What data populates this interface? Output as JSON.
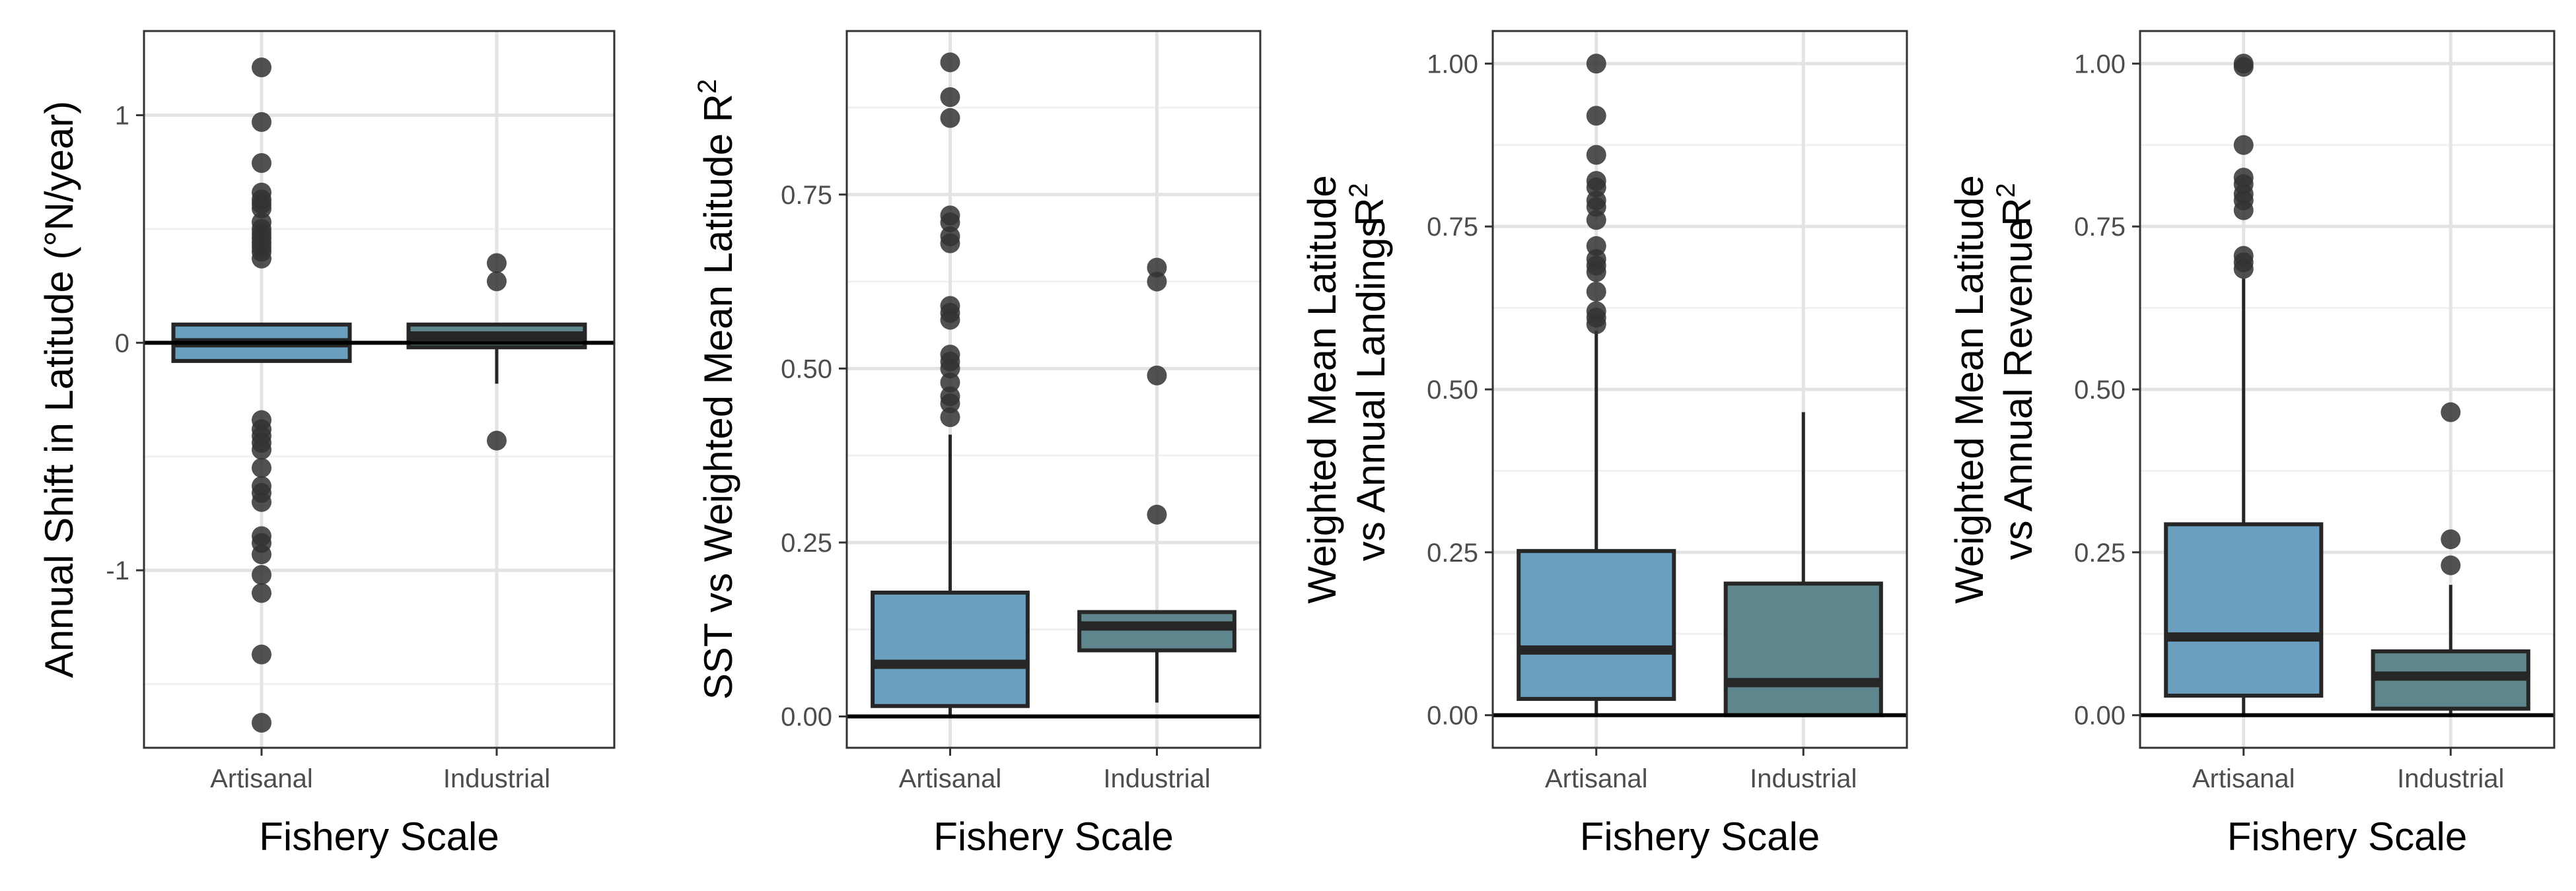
{
  "colors": {
    "artisanal": "#6b9fbf",
    "industrial": "#5f868c",
    "outline": "#262626",
    "point": "#333333",
    "grid_major": "#e3e3e3",
    "grid_minor": "#f1f1f1",
    "zero_line": "#000000"
  },
  "chart_data": [
    {
      "type": "box",
      "xlabel": "Fishery Scale",
      "ylabel_lines": [
        "Annual Shift in Latitude (°N/year)"
      ],
      "ylabel_sup": "",
      "categories": [
        "Artisanal",
        "Industrial"
      ],
      "yticks": [
        -1,
        0,
        1
      ],
      "ytick_labels": [
        "-1",
        "0",
        "1"
      ],
      "ylim": [
        -1.78,
        1.37
      ],
      "zero_line": 0,
      "grid": true,
      "boxes": [
        {
          "category": "Artisanal",
          "q1": -0.08,
          "median": 0.0,
          "q3": 0.08,
          "whisker_low": -0.08,
          "whisker_high": 0.08,
          "outliers": [
            1.21,
            0.97,
            0.79,
            0.66,
            0.63,
            0.61,
            0.59,
            0.53,
            0.5,
            0.48,
            0.46,
            0.44,
            0.42,
            0.4,
            0.37,
            -0.34,
            -0.38,
            -0.41,
            -0.44,
            -0.47,
            -0.55,
            -0.63,
            -0.66,
            -0.7,
            -0.85,
            -0.88,
            -0.93,
            -1.02,
            -1.1,
            -1.37,
            -1.67
          ]
        },
        {
          "category": "Industrial",
          "q1": -0.02,
          "median": 0.03,
          "q3": 0.08,
          "whisker_low": -0.18,
          "whisker_high": 0.08,
          "outliers": [
            0.35,
            0.27,
            -0.43
          ]
        }
      ]
    },
    {
      "type": "box",
      "xlabel": "Fishery Scale",
      "ylabel_lines": [
        "SST vs Weighted Mean Latitude R"
      ],
      "ylabel_sup": "2",
      "categories": [
        "Artisanal",
        "Industrial"
      ],
      "yticks": [
        0,
        0.25,
        0.5,
        0.75
      ],
      "ytick_labels": [
        "0.00",
        "0.25",
        "0.50",
        "0.75"
      ],
      "ylim": [
        -0.045,
        0.985
      ],
      "zero_line": 0,
      "grid": true,
      "boxes": [
        {
          "category": "Artisanal",
          "q1": 0.015,
          "median": 0.075,
          "q3": 0.178,
          "whisker_low": 0.0,
          "whisker_high": 0.405,
          "outliers": [
            0.94,
            0.89,
            0.86,
            0.72,
            0.71,
            0.69,
            0.68,
            0.59,
            0.58,
            0.57,
            0.52,
            0.51,
            0.5,
            0.48,
            0.46,
            0.45,
            0.43
          ]
        },
        {
          "category": "Industrial",
          "q1": 0.095,
          "median": 0.13,
          "q3": 0.15,
          "whisker_low": 0.02,
          "whisker_high": 0.15,
          "outliers": [
            0.645,
            0.625,
            0.49,
            0.29
          ]
        }
      ]
    },
    {
      "type": "box",
      "xlabel": "Fishery Scale",
      "ylabel_lines": [
        "Weighted Mean Latitude",
        "vs Annual Landings"
      ],
      "ylabel_sup": "R2",
      "categories": [
        "Artisanal",
        "Industrial"
      ],
      "yticks": [
        0,
        0.25,
        0.5,
        0.75,
        1.0
      ],
      "ytick_labels": [
        "0.00",
        "0.25",
        "0.50",
        "0.75",
        "1.00"
      ],
      "ylim": [
        -0.05,
        1.05
      ],
      "zero_line": 0,
      "grid": true,
      "boxes": [
        {
          "category": "Artisanal",
          "q1": 0.025,
          "median": 0.1,
          "q3": 0.252,
          "whisker_low": 0.0,
          "whisker_high": 0.59,
          "outliers": [
            1.0,
            0.92,
            0.86,
            0.82,
            0.81,
            0.79,
            0.78,
            0.76,
            0.72,
            0.7,
            0.69,
            0.68,
            0.65,
            0.62,
            0.61,
            0.6
          ]
        },
        {
          "category": "Industrial",
          "q1": 0.0,
          "median": 0.05,
          "q3": 0.202,
          "whisker_low": 0.0,
          "whisker_high": 0.465,
          "outliers": []
        }
      ]
    },
    {
      "type": "box",
      "xlabel": "Fishery Scale",
      "ylabel_lines": [
        "Weighted Mean Latitude",
        "vs Annual Revenue"
      ],
      "ylabel_sup": "R2",
      "categories": [
        "Artisanal",
        "Industrial"
      ],
      "yticks": [
        0,
        0.25,
        0.5,
        0.75,
        1.0
      ],
      "ytick_labels": [
        "0.00",
        "0.25",
        "0.50",
        "0.75",
        "1.00"
      ],
      "ylim": [
        -0.05,
        1.05
      ],
      "zero_line": 0,
      "grid": true,
      "boxes": [
        {
          "category": "Artisanal",
          "q1": 0.03,
          "median": 0.12,
          "q3": 0.293,
          "whisker_low": 0.0,
          "whisker_high": 0.67,
          "outliers": [
            1.0,
            0.995,
            0.875,
            0.825,
            0.815,
            0.8,
            0.79,
            0.775,
            0.705,
            0.695,
            0.685
          ]
        },
        {
          "category": "Industrial",
          "q1": 0.01,
          "median": 0.06,
          "q3": 0.098,
          "whisker_low": 0.0,
          "whisker_high": 0.2,
          "outliers": [
            0.465,
            0.27,
            0.23
          ]
        }
      ]
    }
  ]
}
